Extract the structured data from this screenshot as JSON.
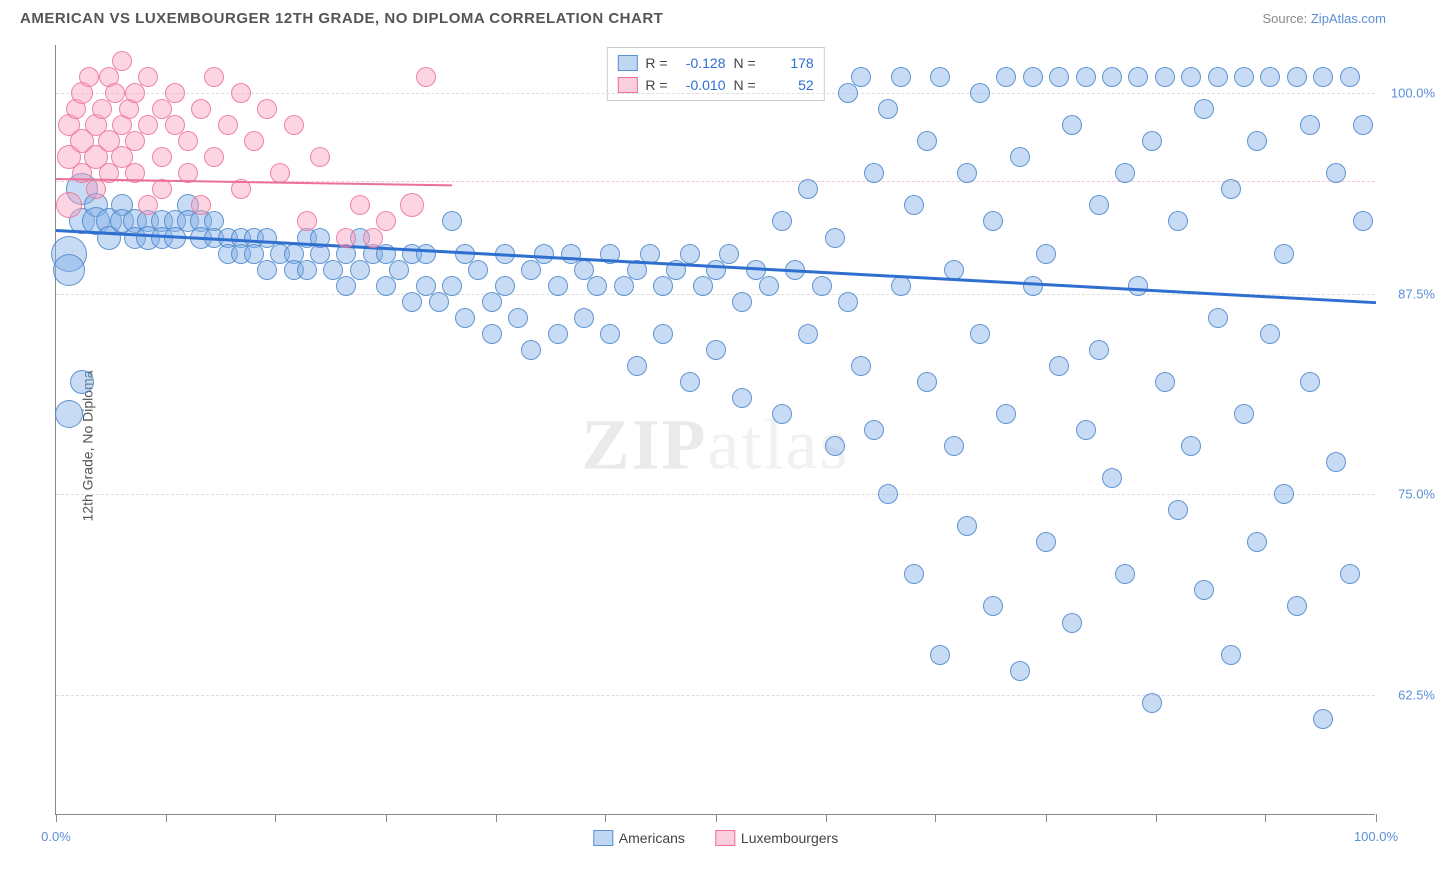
{
  "title": "AMERICAN VS LUXEMBOURGER 12TH GRADE, NO DIPLOMA CORRELATION CHART",
  "source_prefix": "Source: ",
  "source_link": "ZipAtlas.com",
  "ylabel": "12th Grade, No Diploma",
  "watermark_a": "ZIP",
  "watermark_b": "atlas",
  "chart": {
    "type": "scatter",
    "xlim": [
      0,
      100
    ],
    "ylim": [
      55,
      103
    ],
    "xtick_positions": [
      0,
      8.3,
      16.6,
      25,
      33.3,
      41.6,
      50,
      58.3,
      66.6,
      75,
      83.3,
      91.6,
      100
    ],
    "xtick_labels": {
      "0": "0.0%",
      "100": "100.0%"
    },
    "ytick_positions": [
      62.5,
      75.0,
      87.5,
      100.0
    ],
    "ytick_labels": [
      "62.5%",
      "75.0%",
      "87.5%",
      "100.0%"
    ],
    "pink_dash_y": 94.5,
    "background_color": "#ffffff",
    "grid_color": "#dddddd",
    "series": [
      {
        "name": "Americans",
        "color_fill": "rgba(130,175,230,0.45)",
        "color_stroke": "rgba(70,130,200,0.8)",
        "R": "-0.128",
        "N": "178",
        "trend": {
          "x1": 0,
          "y1": 91.5,
          "x2": 100,
          "y2": 87.0,
          "color": "#2e6fd0"
        },
        "base_radius": 9,
        "points": [
          [
            1,
            90,
            18
          ],
          [
            1,
            89,
            16
          ],
          [
            1,
            80,
            14
          ],
          [
            2,
            82,
            12
          ],
          [
            2,
            94,
            16
          ],
          [
            2,
            92,
            13
          ],
          [
            3,
            93,
            12
          ],
          [
            3,
            92,
            14
          ],
          [
            4,
            92,
            13
          ],
          [
            4,
            91,
            12
          ],
          [
            5,
            93,
            11
          ],
          [
            5,
            92,
            12
          ],
          [
            6,
            92,
            12
          ],
          [
            6,
            91,
            11
          ],
          [
            7,
            92,
            11
          ],
          [
            7,
            91,
            12
          ],
          [
            8,
            92,
            11
          ],
          [
            8,
            91,
            11
          ],
          [
            9,
            92,
            11
          ],
          [
            9,
            91,
            11
          ],
          [
            10,
            93,
            11
          ],
          [
            10,
            92,
            11
          ],
          [
            11,
            92,
            11
          ],
          [
            11,
            91,
            11
          ],
          [
            12,
            92,
            10
          ],
          [
            12,
            91,
            10
          ],
          [
            13,
            91,
            10
          ],
          [
            13,
            90,
            10
          ],
          [
            14,
            91,
            10
          ],
          [
            14,
            90,
            10
          ],
          [
            15,
            91,
            10
          ],
          [
            15,
            90,
            10
          ],
          [
            16,
            91,
            10
          ],
          [
            16,
            89,
            10
          ],
          [
            17,
            90,
            10
          ],
          [
            18,
            90,
            10
          ],
          [
            18,
            89,
            10
          ],
          [
            19,
            91,
            10
          ],
          [
            19,
            89,
            10
          ],
          [
            20,
            90,
            10
          ],
          [
            20,
            91,
            10
          ],
          [
            21,
            89,
            10
          ],
          [
            22,
            90,
            10
          ],
          [
            22,
            88,
            10
          ],
          [
            23,
            91,
            10
          ],
          [
            23,
            89,
            10
          ],
          [
            24,
            90,
            10
          ],
          [
            25,
            90,
            10
          ],
          [
            25,
            88,
            10
          ],
          [
            26,
            89,
            10
          ],
          [
            27,
            90,
            10
          ],
          [
            27,
            87,
            10
          ],
          [
            28,
            90,
            10
          ],
          [
            28,
            88,
            10
          ],
          [
            29,
            87,
            10
          ],
          [
            30,
            92,
            10
          ],
          [
            30,
            88,
            10
          ],
          [
            31,
            90,
            10
          ],
          [
            31,
            86,
            10
          ],
          [
            32,
            89,
            10
          ],
          [
            33,
            87,
            10
          ],
          [
            33,
            85,
            10
          ],
          [
            34,
            90,
            10
          ],
          [
            34,
            88,
            10
          ],
          [
            35,
            86,
            10
          ],
          [
            36,
            89,
            10
          ],
          [
            36,
            84,
            10
          ],
          [
            37,
            90,
            10
          ],
          [
            38,
            88,
            10
          ],
          [
            38,
            85,
            10
          ],
          [
            39,
            90,
            10
          ],
          [
            40,
            89,
            10
          ],
          [
            40,
            86,
            10
          ],
          [
            41,
            88,
            10
          ],
          [
            42,
            90,
            10
          ],
          [
            42,
            85,
            10
          ],
          [
            43,
            88,
            10
          ],
          [
            44,
            89,
            10
          ],
          [
            44,
            83,
            10
          ],
          [
            45,
            90,
            10
          ],
          [
            46,
            88,
            10
          ],
          [
            46,
            85,
            10
          ],
          [
            47,
            89,
            10
          ],
          [
            48,
            90,
            10
          ],
          [
            48,
            82,
            10
          ],
          [
            49,
            88,
            10
          ],
          [
            50,
            89,
            10
          ],
          [
            50,
            84,
            10
          ],
          [
            51,
            90,
            10
          ],
          [
            52,
            87,
            10
          ],
          [
            52,
            81,
            10
          ],
          [
            53,
            89,
            10
          ],
          [
            54,
            88,
            10
          ],
          [
            55,
            92,
            10
          ],
          [
            55,
            80,
            10
          ],
          [
            56,
            89,
            10
          ],
          [
            57,
            94,
            10
          ],
          [
            57,
            85,
            10
          ],
          [
            58,
            88,
            10
          ],
          [
            59,
            91,
            10
          ],
          [
            59,
            78,
            10
          ],
          [
            60,
            100,
            10
          ],
          [
            60,
            87,
            10
          ],
          [
            61,
            101,
            10
          ],
          [
            61,
            83,
            10
          ],
          [
            62,
            95,
            10
          ],
          [
            62,
            79,
            10
          ],
          [
            63,
            99,
            10
          ],
          [
            63,
            75,
            10
          ],
          [
            64,
            101,
            10
          ],
          [
            64,
            88,
            10
          ],
          [
            65,
            93,
            10
          ],
          [
            65,
            70,
            10
          ],
          [
            66,
            97,
            10
          ],
          [
            66,
            82,
            10
          ],
          [
            67,
            101,
            10
          ],
          [
            67,
            65,
            10
          ],
          [
            68,
            89,
            10
          ],
          [
            68,
            78,
            10
          ],
          [
            69,
            95,
            10
          ],
          [
            69,
            73,
            10
          ],
          [
            70,
            100,
            10
          ],
          [
            70,
            85,
            10
          ],
          [
            71,
            92,
            10
          ],
          [
            71,
            68,
            10
          ],
          [
            72,
            101,
            10
          ],
          [
            72,
            80,
            10
          ],
          [
            73,
            96,
            10
          ],
          [
            73,
            64,
            10
          ],
          [
            74,
            101,
            10
          ],
          [
            74,
            88,
            10
          ],
          [
            75,
            90,
            10
          ],
          [
            75,
            72,
            10
          ],
          [
            76,
            101,
            10
          ],
          [
            76,
            83,
            10
          ],
          [
            77,
            98,
            10
          ],
          [
            77,
            67,
            10
          ],
          [
            78,
            101,
            10
          ],
          [
            78,
            79,
            10
          ],
          [
            79,
            93,
            10
          ],
          [
            79,
            84,
            10
          ],
          [
            80,
            101,
            10
          ],
          [
            80,
            76,
            10
          ],
          [
            81,
            95,
            10
          ],
          [
            81,
            70,
            10
          ],
          [
            82,
            101,
            10
          ],
          [
            82,
            88,
            10
          ],
          [
            83,
            97,
            10
          ],
          [
            83,
            62,
            10
          ],
          [
            84,
            101,
            10
          ],
          [
            84,
            82,
            10
          ],
          [
            85,
            92,
            10
          ],
          [
            85,
            74,
            10
          ],
          [
            86,
            101,
            10
          ],
          [
            86,
            78,
            10
          ],
          [
            87,
            99,
            10
          ],
          [
            87,
            69,
            10
          ],
          [
            88,
            101,
            10
          ],
          [
            88,
            86,
            10
          ],
          [
            89,
            94,
            10
          ],
          [
            89,
            65,
            10
          ],
          [
            90,
            101,
            10
          ],
          [
            90,
            80,
            10
          ],
          [
            91,
            97,
            10
          ],
          [
            91,
            72,
            10
          ],
          [
            92,
            101,
            10
          ],
          [
            92,
            85,
            10
          ],
          [
            93,
            90,
            10
          ],
          [
            93,
            75,
            10
          ],
          [
            94,
            101,
            10
          ],
          [
            94,
            68,
            10
          ],
          [
            95,
            98,
            10
          ],
          [
            95,
            82,
            10
          ],
          [
            96,
            101,
            10
          ],
          [
            96,
            61,
            10
          ],
          [
            97,
            95,
            10
          ],
          [
            97,
            77,
            10
          ],
          [
            98,
            101,
            10
          ],
          [
            98,
            70,
            10
          ],
          [
            99,
            92,
            10
          ],
          [
            99,
            98,
            10
          ]
        ]
      },
      {
        "name": "Luxembourgers",
        "color_fill": "rgba(250,160,190,0.45)",
        "color_stroke": "rgba(235,110,150,0.8)",
        "R": "-0.010",
        "N": "52",
        "trend": {
          "x1": 0,
          "y1": 94.7,
          "x2": 30,
          "y2": 94.3,
          "color": "#ec6f9a"
        },
        "base_radius": 9,
        "points": [
          [
            1,
            96,
            12
          ],
          [
            1,
            98,
            11
          ],
          [
            1,
            93,
            13
          ],
          [
            1.5,
            99,
            10
          ],
          [
            2,
            97,
            12
          ],
          [
            2,
            100,
            11
          ],
          [
            2,
            95,
            10
          ],
          [
            2.5,
            101,
            10
          ],
          [
            3,
            98,
            11
          ],
          [
            3,
            96,
            12
          ],
          [
            3,
            94,
            10
          ],
          [
            3.5,
            99,
            10
          ],
          [
            4,
            101,
            10
          ],
          [
            4,
            97,
            11
          ],
          [
            4,
            95,
            10
          ],
          [
            4.5,
            100,
            10
          ],
          [
            5,
            98,
            10
          ],
          [
            5,
            96,
            11
          ],
          [
            5,
            102,
            10
          ],
          [
            5.5,
            99,
            10
          ],
          [
            6,
            97,
            10
          ],
          [
            6,
            100,
            10
          ],
          [
            6,
            95,
            10
          ],
          [
            7,
            98,
            10
          ],
          [
            7,
            101,
            10
          ],
          [
            7,
            93,
            10
          ],
          [
            8,
            99,
            10
          ],
          [
            8,
            96,
            10
          ],
          [
            8,
            94,
            10
          ],
          [
            9,
            98,
            10
          ],
          [
            9,
            100,
            10
          ],
          [
            10,
            97,
            10
          ],
          [
            10,
            95,
            10
          ],
          [
            11,
            99,
            10
          ],
          [
            11,
            93,
            10
          ],
          [
            12,
            101,
            10
          ],
          [
            12,
            96,
            10
          ],
          [
            13,
            98,
            10
          ],
          [
            14,
            100,
            10
          ],
          [
            14,
            94,
            10
          ],
          [
            15,
            97,
            10
          ],
          [
            16,
            99,
            10
          ],
          [
            17,
            95,
            10
          ],
          [
            18,
            98,
            10
          ],
          [
            19,
            92,
            10
          ],
          [
            20,
            96,
            10
          ],
          [
            22,
            91,
            10
          ],
          [
            23,
            93,
            10
          ],
          [
            24,
            91,
            10
          ],
          [
            25,
            92,
            10
          ],
          [
            27,
            93,
            12
          ],
          [
            28,
            101,
            10
          ]
        ]
      }
    ],
    "stats_legend": {
      "r_label": "R =",
      "n_label": "N ="
    },
    "bottom_legend": [
      {
        "label": "Americans",
        "class": "blue"
      },
      {
        "label": "Luxembourgers",
        "class": "pink"
      }
    ]
  }
}
